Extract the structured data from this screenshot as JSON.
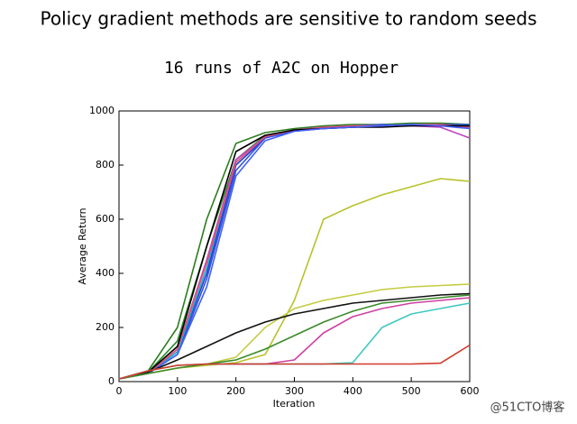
{
  "heading": "Policy gradient methods are sensitive to random seeds",
  "watermark": "@51CTO博客",
  "chart_data": {
    "type": "line",
    "title": "16 runs of A2C on Hopper",
    "xlabel": "Iteration",
    "ylabel": "Average Return",
    "x": [
      0,
      50,
      100,
      150,
      200,
      250,
      300,
      350,
      400,
      450,
      500,
      550,
      600
    ],
    "xlim": [
      0,
      600
    ],
    "xticks": [
      0,
      100,
      200,
      300,
      400,
      500,
      600
    ],
    "ylim": [
      0,
      1000
    ],
    "yticks": [
      0,
      200,
      400,
      600,
      800,
      1000
    ],
    "grid": false,
    "series": [
      {
        "color": "#2e7d1f",
        "values": [
          10,
          40,
          200,
          600,
          880,
          920,
          935,
          945,
          950,
          950,
          955,
          955,
          950
        ]
      },
      {
        "color": "#228b22",
        "values": [
          10,
          35,
          150,
          500,
          820,
          910,
          930,
          940,
          945,
          950,
          950,
          950,
          945
        ]
      },
      {
        "color": "#1f3fd0",
        "values": [
          10,
          30,
          110,
          400,
          800,
          900,
          930,
          940,
          940,
          945,
          950,
          945,
          940
        ]
      },
      {
        "color": "#3050e0",
        "values": [
          10,
          30,
          100,
          380,
          780,
          900,
          925,
          935,
          945,
          950,
          945,
          950,
          950
        ]
      },
      {
        "color": "#20b0c8",
        "values": [
          10,
          30,
          110,
          420,
          820,
          905,
          930,
          940,
          945,
          945,
          950,
          945,
          945
        ]
      },
      {
        "color": "#c040c0",
        "values": [
          10,
          30,
          120,
          450,
          820,
          905,
          930,
          935,
          940,
          945,
          945,
          940,
          900
        ]
      },
      {
        "color": "#e0507a",
        "values": [
          10,
          30,
          120,
          440,
          810,
          905,
          930,
          940,
          945,
          945,
          950,
          950,
          940
        ]
      },
      {
        "color": "#000000",
        "values": [
          10,
          35,
          130,
          500,
          850,
          910,
          930,
          935,
          940,
          940,
          945,
          945,
          945
        ]
      },
      {
        "color": "#4060ff",
        "values": [
          10,
          30,
          100,
          350,
          760,
          890,
          925,
          935,
          940,
          945,
          950,
          945,
          935
        ]
      },
      {
        "color": "#b8c22a",
        "values": [
          10,
          30,
          50,
          60,
          70,
          100,
          300,
          600,
          650,
          690,
          720,
          750,
          740
        ]
      },
      {
        "color": "#c4cc40",
        "values": [
          10,
          30,
          50,
          65,
          90,
          200,
          270,
          300,
          320,
          340,
          350,
          355,
          360
        ]
      },
      {
        "color": "#111111",
        "values": [
          10,
          35,
          80,
          130,
          180,
          220,
          250,
          270,
          290,
          300,
          310,
          320,
          325
        ]
      },
      {
        "color": "#3a8a2a",
        "values": [
          10,
          30,
          50,
          65,
          80,
          120,
          170,
          220,
          260,
          290,
          300,
          310,
          320
        ]
      },
      {
        "color": "#d040a0",
        "values": [
          10,
          40,
          60,
          65,
          65,
          65,
          80,
          180,
          240,
          270,
          290,
          300,
          310
        ]
      },
      {
        "color": "#40c8c0",
        "values": [
          10,
          40,
          60,
          65,
          65,
          65,
          65,
          65,
          70,
          200,
          250,
          270,
          290
        ]
      },
      {
        "color": "#d03a2a",
        "values": [
          10,
          40,
          60,
          65,
          65,
          65,
          65,
          65,
          65,
          65,
          65,
          68,
          135
        ]
      }
    ]
  }
}
